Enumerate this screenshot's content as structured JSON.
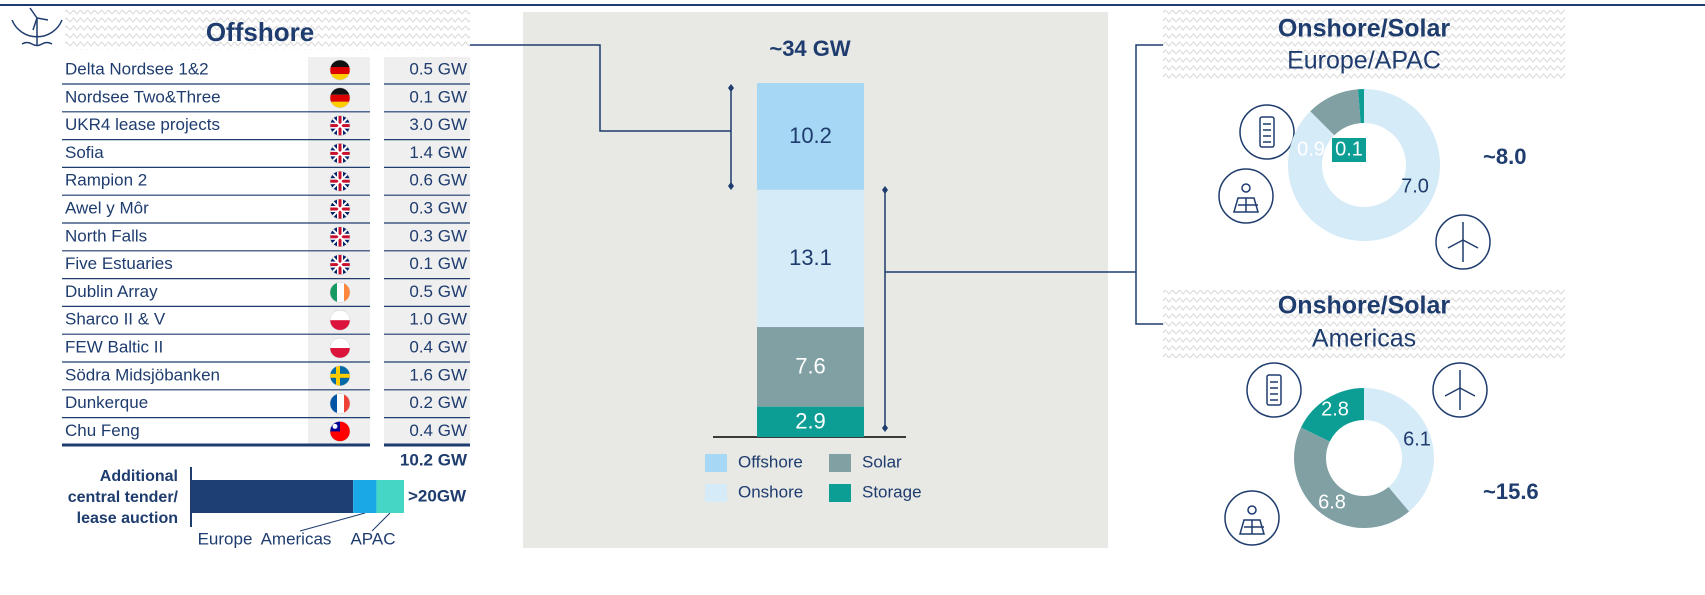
{
  "offshore": {
    "title": "Offshore",
    "rows": [
      [
        "Delta Nordsee 1&2",
        "0.5 GW"
      ],
      [
        "Nordsee Two&Three",
        "0.1 GW"
      ],
      [
        "UKR4 lease projects",
        "3.0 GW"
      ],
      [
        "Sofia",
        "1.4 GW"
      ],
      [
        "Rampion 2",
        "0.6 GW"
      ],
      [
        "Awel y Môr",
        "0.3 GW"
      ],
      [
        "North Falls",
        "0.3 GW"
      ],
      [
        "Five Estuaries",
        "0.1 GW"
      ],
      [
        "Dublin Array",
        "0.5 GW"
      ],
      [
        "Sharco II & V",
        "1.0 GW"
      ],
      [
        "FEW Baltic II",
        "0.4 GW"
      ],
      [
        "Södra Midsjöbanken",
        "1.6 GW"
      ],
      [
        "Dunkerque",
        "0.2 GW"
      ],
      [
        "Chu Feng",
        "0.4 GW"
      ]
    ],
    "total": "10.2 GW"
  },
  "chart_data": [
    {
      "type": "hbar-stack",
      "title_lines": [
        "Additional",
        "central tender/",
        "lease auction"
      ],
      "annotation": ">20GW",
      "xlim": [
        0,
        100
      ],
      "series": [
        {
          "name": "Europe",
          "color": "#1e3f72",
          "values": [
            76
          ]
        },
        {
          "name": "Americas",
          "color": "#1aa9e6",
          "values": [
            11
          ]
        },
        {
          "name": "APAC",
          "color": "#45d6c5",
          "values": [
            13
          ]
        }
      ]
    },
    {
      "type": "stacked-bar",
      "title": "~34 GW",
      "ylim": [
        0,
        33.8
      ],
      "series": [
        {
          "name": "Offshore",
          "color": "#a6d8f5",
          "values": [
            10.2
          ]
        },
        {
          "name": "Onshore",
          "color": "#d6ebf8",
          "values": [
            13.1
          ]
        },
        {
          "name": "Solar",
          "color": "#80a0a4",
          "values": [
            7.6
          ]
        },
        {
          "name": "Storage",
          "color": "#0c9e94",
          "values": [
            2.9
          ]
        }
      ]
    },
    {
      "type": "donut",
      "title": "Onshore/Solar",
      "subtitle": "Europe/APAC",
      "total": "~8.0",
      "colors": [
        "#d6ebf8",
        "#80a0a4",
        "#0c9e94"
      ],
      "values": [
        7.0,
        0.9,
        0.1
      ],
      "value_labels": [
        "7.0",
        "0.9",
        "0.1"
      ]
    },
    {
      "type": "donut",
      "title": "Onshore/Solar",
      "subtitle": "Americas",
      "total": "~15.6",
      "colors": [
        "#d6ebf8",
        "#80a0a4",
        "#0c9e94"
      ],
      "values": [
        6.1,
        6.8,
        2.8
      ]
    }
  ]
}
